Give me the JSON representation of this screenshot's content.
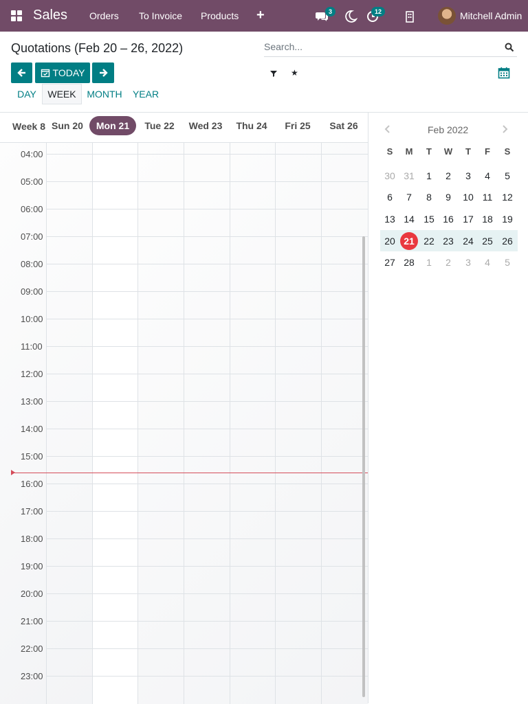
{
  "navbar": {
    "brand": "Sales",
    "menu": [
      "Orders",
      "To Invoice",
      "Products"
    ],
    "plus_label": "+",
    "messages_badge": "3",
    "activities_badge": "12",
    "user_name": "Mitchell Admin",
    "color": "#714b67"
  },
  "control_panel": {
    "title": "Quotations (Feb 20 – 26, 2022)",
    "search_placeholder": "Search...",
    "today_label": "TODAY",
    "scales": [
      "DAY",
      "WEEK",
      "MONTH",
      "YEAR"
    ],
    "active_scale": "WEEK",
    "accent_color": "#017e84"
  },
  "week_view": {
    "week_label": "Week 8",
    "days": [
      "Sun 20",
      "Mon 21",
      "Tue 22",
      "Wed 23",
      "Thu 24",
      "Fri 25",
      "Sat 26"
    ],
    "today": "Mon 21",
    "hours": [
      "04:00",
      "05:00",
      "06:00",
      "07:00",
      "08:00",
      "09:00",
      "10:00",
      "11:00",
      "12:00",
      "13:00",
      "14:00",
      "15:00",
      "16:00",
      "17:00",
      "18:00",
      "19:00",
      "20:00",
      "21:00",
      "22:00",
      "23:00"
    ]
  },
  "mini_calendar": {
    "title": "Feb 2022",
    "weekdays": [
      "S",
      "M",
      "T",
      "W",
      "T",
      "F",
      "S"
    ],
    "weeks": [
      [
        "30",
        "31",
        "1",
        "2",
        "3",
        "4",
        "5"
      ],
      [
        "6",
        "7",
        "8",
        "9",
        "10",
        "11",
        "12"
      ],
      [
        "13",
        "14",
        "15",
        "16",
        "17",
        "18",
        "19"
      ],
      [
        "20",
        "21",
        "22",
        "23",
        "24",
        "25",
        "26"
      ],
      [
        "27",
        "28",
        "1",
        "2",
        "3",
        "4",
        "5"
      ]
    ],
    "today": "21",
    "today_color": "#e9383f"
  }
}
